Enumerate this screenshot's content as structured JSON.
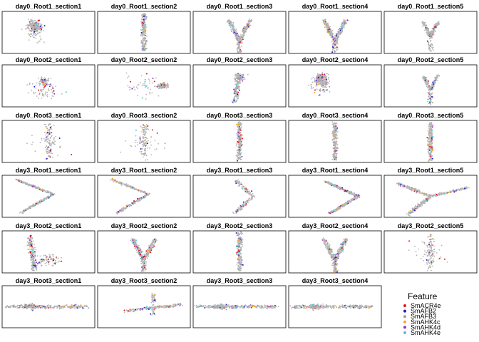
{
  "chart_data": {
    "type": "scatter",
    "layout": {
      "rows": 6,
      "cols": 5
    },
    "panels": [
      {
        "title": "day0_Root1_section1",
        "shape": "blob"
      },
      {
        "title": "day0_Root1_section2",
        "shape": "vertical"
      },
      {
        "title": "day0_Root1_section3",
        "shape": "v"
      },
      {
        "title": "day0_Root1_section4",
        "shape": "v"
      },
      {
        "title": "day0_Root1_section5",
        "shape": "v-small"
      },
      {
        "title": "day0_Root2_section1",
        "shape": "scatter-sparse"
      },
      {
        "title": "day0_Root2_section2",
        "shape": "blob-right"
      },
      {
        "title": "day0_Root2_section3",
        "shape": "vertical-short"
      },
      {
        "title": "day0_Root2_section4",
        "shape": "blob"
      },
      {
        "title": "day0_Root2_section5",
        "shape": "v-small"
      },
      {
        "title": "day0_Root3_section1",
        "shape": "vertical-sparse"
      },
      {
        "title": "day0_Root3_section2",
        "shape": "vertical-sparse"
      },
      {
        "title": "day0_Root3_section3",
        "shape": "vertical"
      },
      {
        "title": "day0_Root3_section4",
        "shape": "vertical"
      },
      {
        "title": "day0_Root3_section5",
        "shape": "vertical"
      },
      {
        "title": "day3_Root1_section1",
        "shape": "chevron"
      },
      {
        "title": "day3_Root1_section2",
        "shape": "chevron"
      },
      {
        "title": "day3_Root1_section3",
        "shape": "chevron-sparse"
      },
      {
        "title": "day3_Root1_section4",
        "shape": "chevron-bold"
      },
      {
        "title": "day3_Root1_section5",
        "shape": "y-shape"
      },
      {
        "title": "day3_Root2_section1",
        "shape": "vertical-left"
      },
      {
        "title": "day3_Root2_section2",
        "shape": "v"
      },
      {
        "title": "day3_Root2_section3",
        "shape": "vertical"
      },
      {
        "title": "day3_Root2_section4",
        "shape": "v"
      },
      {
        "title": "day3_Root2_section5",
        "shape": "vertical-sparse"
      },
      {
        "title": "day3_Root3_section1",
        "shape": "horizontal"
      },
      {
        "title": "day3_Root3_section2",
        "shape": "horizontal-short"
      },
      {
        "title": "day3_Root3_section3",
        "shape": "horizontal"
      },
      {
        "title": "day3_Root3_section4",
        "shape": "horizontal"
      }
    ],
    "background_color": "#b5b5b5",
    "legend": {
      "title": "Feature",
      "position": "bottom-right",
      "entries": [
        {
          "name": "SmACR4e",
          "color": "#e41a1c"
        },
        {
          "name": "SmAFB2",
          "color": "#1f1fbf"
        },
        {
          "name": "SmAFB3",
          "color": "#a0a0a0"
        },
        {
          "name": "SmAHK4c",
          "color": "#f5a623"
        },
        {
          "name": "SmAHK4d",
          "color": "#9b30b5"
        },
        {
          "name": "SmAHK4e",
          "color": "#48c9d1"
        }
      ]
    },
    "grid": false
  }
}
